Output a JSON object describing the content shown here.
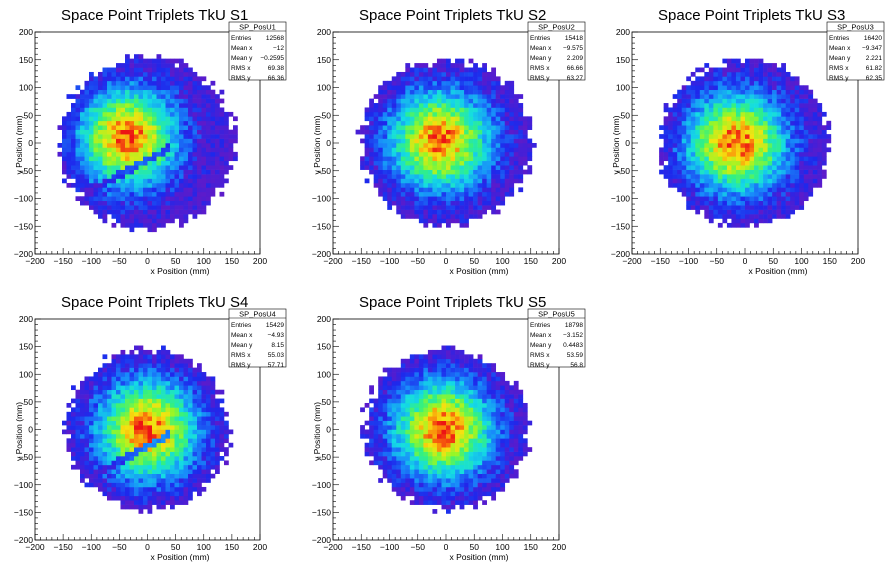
{
  "chart_data": [
    {
      "type": "heatmap",
      "title": "Space Point Triplets TkU S1",
      "xlabel": "x Position (mm)",
      "ylabel": "y Position (mm)",
      "xlim": [
        -200,
        200
      ],
      "ylim": [
        -200,
        200
      ],
      "xticks": [
        "−200",
        "−150",
        "−100",
        "−50",
        "0",
        "50",
        "100",
        "150",
        "200"
      ],
      "yticks": [
        "−200",
        "−150",
        "−100",
        "−50",
        "0",
        "50",
        "100",
        "150",
        "200"
      ],
      "grid": false,
      "stats": {
        "name": "SP_PosU1",
        "rows": [
          {
            "label": "Entries",
            "value": "12568"
          },
          {
            "label": "Mean x",
            "value": "−12"
          },
          {
            "label": "Mean y",
            "value": "−0.2595"
          },
          {
            "label": "RMS x",
            "value": "69.38"
          },
          {
            "label": "RMS y",
            "value": "66.36"
          }
        ]
      },
      "shape": {
        "cx": 0,
        "cy": 0,
        "radius": 155,
        "peak_x": -35,
        "peak_y": 10,
        "gap": true
      }
    },
    {
      "type": "heatmap",
      "title": "Space Point Triplets TkU S2",
      "xlabel": "x Position (mm)",
      "ylabel": "y Position (mm)",
      "xlim": [
        -200,
        200
      ],
      "ylim": [
        -200,
        200
      ],
      "xticks": [
        "−200",
        "−150",
        "−100",
        "−50",
        "0",
        "50",
        "100",
        "150",
        "200"
      ],
      "yticks": [
        "−200",
        "−150",
        "−100",
        "−50",
        "0",
        "50",
        "100",
        "150",
        "200"
      ],
      "grid": false,
      "stats": {
        "name": "SP_PosU2",
        "rows": [
          {
            "label": "Entries",
            "value": "15418"
          },
          {
            "label": "Mean x",
            "value": "−9.575"
          },
          {
            "label": "Mean y",
            "value": "2.209"
          },
          {
            "label": "RMS x",
            "value": "66.66"
          },
          {
            "label": "RMS y",
            "value": "63.27"
          }
        ]
      },
      "shape": {
        "cx": 0,
        "cy": 0,
        "radius": 150,
        "peak_x": -10,
        "peak_y": 5,
        "gap": false
      }
    },
    {
      "type": "heatmap",
      "title": "Space Point Triplets TkU S3",
      "xlabel": "x Position (mm)",
      "ylabel": "y Position (mm)",
      "xlim": [
        -200,
        200
      ],
      "ylim": [
        -200,
        200
      ],
      "xticks": [
        "−200",
        "−150",
        "−100",
        "−50",
        "0",
        "50",
        "100",
        "150",
        "200"
      ],
      "yticks": [
        "−200",
        "−150",
        "−100",
        "−50",
        "0",
        "50",
        "100",
        "150",
        "200"
      ],
      "grid": false,
      "stats": {
        "name": "SP_PosU3",
        "rows": [
          {
            "label": "Entries",
            "value": "16420"
          },
          {
            "label": "Mean x",
            "value": "−9.347"
          },
          {
            "label": "Mean y",
            "value": "2.221"
          },
          {
            "label": "RMS x",
            "value": "61.82"
          },
          {
            "label": "RMS y",
            "value": "62.35"
          }
        ]
      },
      "shape": {
        "cx": 0,
        "cy": 0,
        "radius": 150,
        "peak_x": -15,
        "peak_y": 0,
        "gap": false
      }
    },
    {
      "type": "heatmap",
      "title": "Space Point Triplets TkU S4",
      "xlabel": "x Position (mm)",
      "ylabel": "y Position (mm)",
      "xlim": [
        -200,
        200
      ],
      "ylim": [
        -200,
        200
      ],
      "xticks": [
        "−200",
        "−150",
        "−100",
        "−50",
        "0",
        "50",
        "100",
        "150",
        "200"
      ],
      "yticks": [
        "−200",
        "−150",
        "−100",
        "−50",
        "0",
        "50",
        "100",
        "150",
        "200"
      ],
      "grid": false,
      "stats": {
        "name": "SP_PosU4",
        "rows": [
          {
            "label": "Entries",
            "value": "15429"
          },
          {
            "label": "Mean x",
            "value": "−4.93"
          },
          {
            "label": "Mean y",
            "value": "8.15"
          },
          {
            "label": "RMS x",
            "value": "55.03"
          },
          {
            "label": "RMS y",
            "value": "57.71"
          }
        ]
      },
      "shape": {
        "cx": 0,
        "cy": 0,
        "radius": 145,
        "peak_x": 0,
        "peak_y": 0,
        "gap": true
      }
    },
    {
      "type": "heatmap",
      "title": "Space Point Triplets TkU S5",
      "xlabel": "x Position (mm)",
      "ylabel": "y Position (mm)",
      "xlim": [
        -200,
        200
      ],
      "ylim": [
        -200,
        200
      ],
      "xticks": [
        "−200",
        "−150",
        "−100",
        "−50",
        "0",
        "50",
        "100",
        "150",
        "200"
      ],
      "yticks": [
        "−200",
        "−150",
        "−100",
        "−50",
        "0",
        "50",
        "100",
        "150",
        "200"
      ],
      "grid": false,
      "stats": {
        "name": "SP_PosU5",
        "rows": [
          {
            "label": "Entries",
            "value": "18798"
          },
          {
            "label": "Mean x",
            "value": "−3.152"
          },
          {
            "label": "Mean y",
            "value": "0.4483"
          },
          {
            "label": "RMS x",
            "value": "53.59"
          },
          {
            "label": "RMS y",
            "value": "56.8"
          }
        ]
      },
      "shape": {
        "cx": 0,
        "cy": 0,
        "radius": 145,
        "peak_x": -5,
        "peak_y": 0,
        "gap": false
      }
    }
  ]
}
